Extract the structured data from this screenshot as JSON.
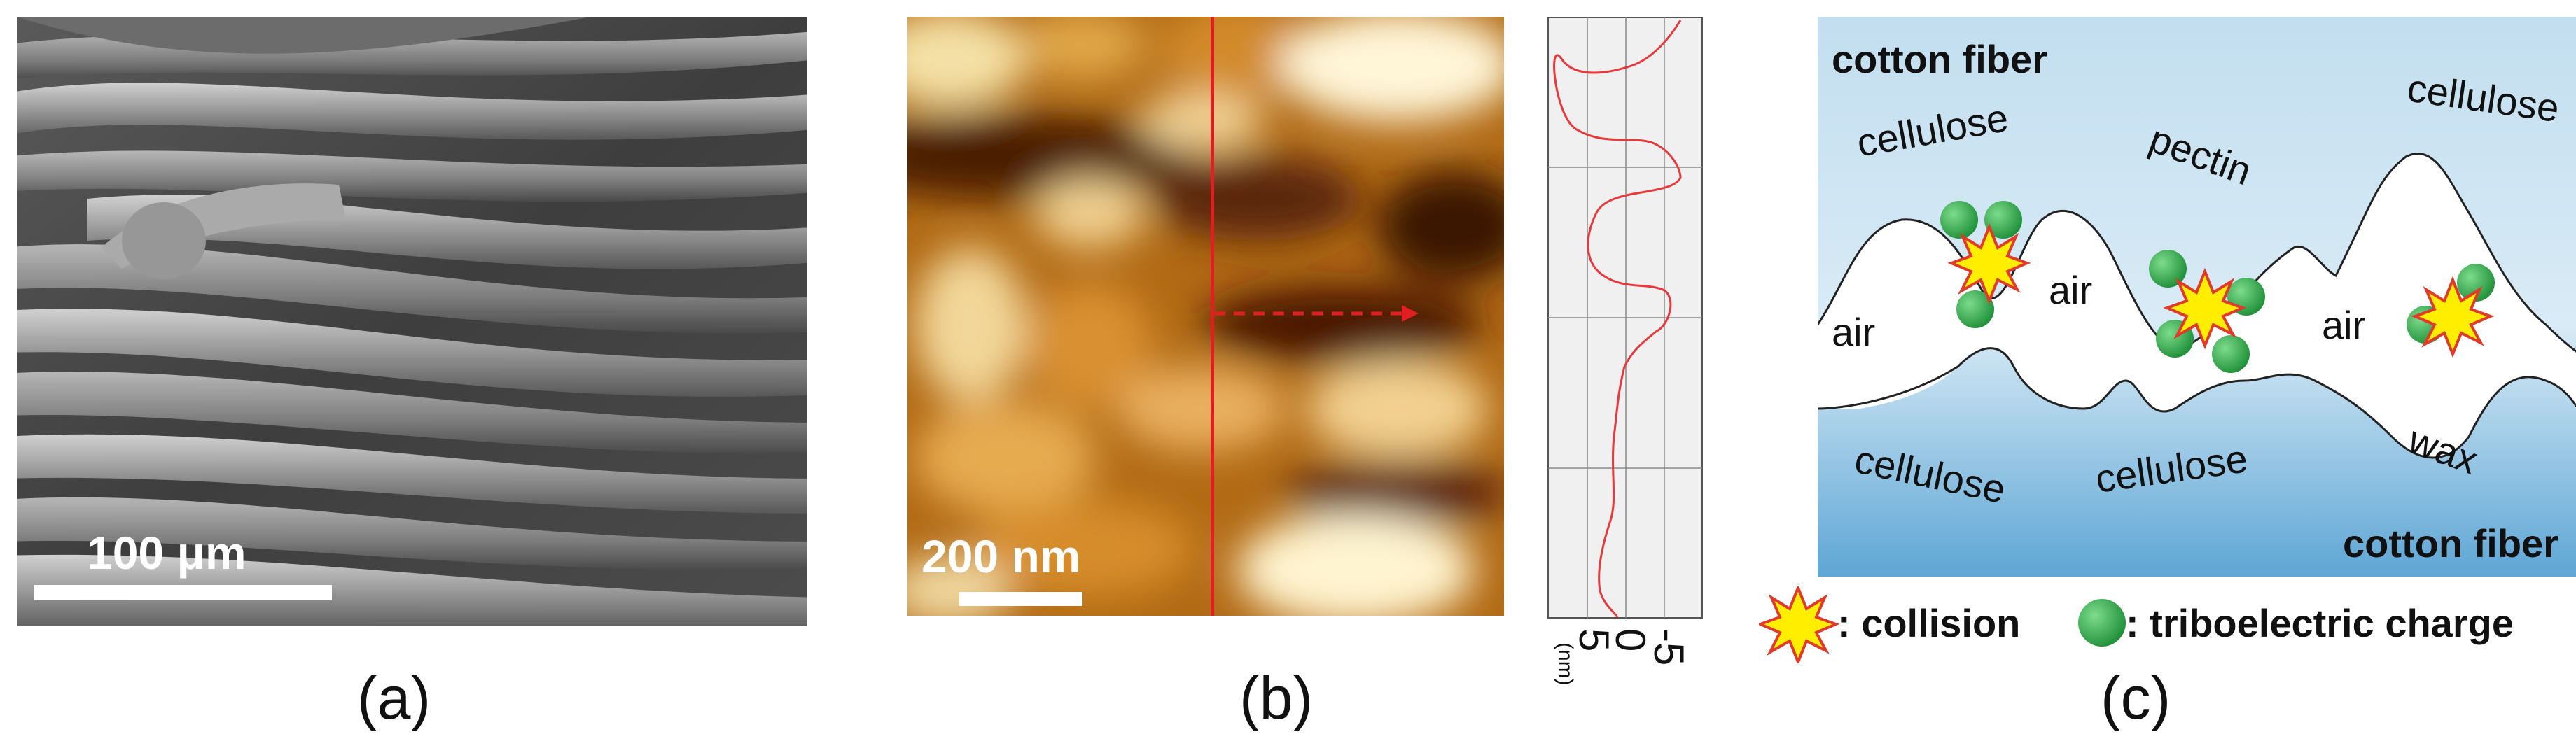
{
  "panel_a": {
    "scale_label": "100 μm",
    "caption": "(a)"
  },
  "panel_b": {
    "scale_label": "200 nm",
    "caption": "(b)",
    "profile": {
      "axis_unit": "(nm)",
      "tick_labels": [
        "5",
        "0",
        "-5"
      ]
    }
  },
  "panel_c": {
    "labels": {
      "top_fiber": "cotton fiber",
      "bottom_fiber": "cotton fiber",
      "cellulose_top_left": "cellulose",
      "pectin": "pectin",
      "cellulose_top_right": "cellulose",
      "air_1": "air",
      "air_2": "air",
      "air_3": "air",
      "cellulose_bottom_left": "cellulose",
      "cellulose_bottom_mid": "cellulose",
      "wax": "wax"
    },
    "legend": {
      "collision": ": collision",
      "charge": ": triboelectric charge"
    },
    "caption": "(c)"
  },
  "colors": {
    "profile_line": "#e8383b",
    "marker_line": "#e02020",
    "charge": "#2fa84a",
    "collision_fill": "#ffee00",
    "collision_stroke": "#e03a2a",
    "fiber_gradient_top": "#b9d9ee",
    "fiber_gradient_bottom": "#5fa7d6"
  }
}
